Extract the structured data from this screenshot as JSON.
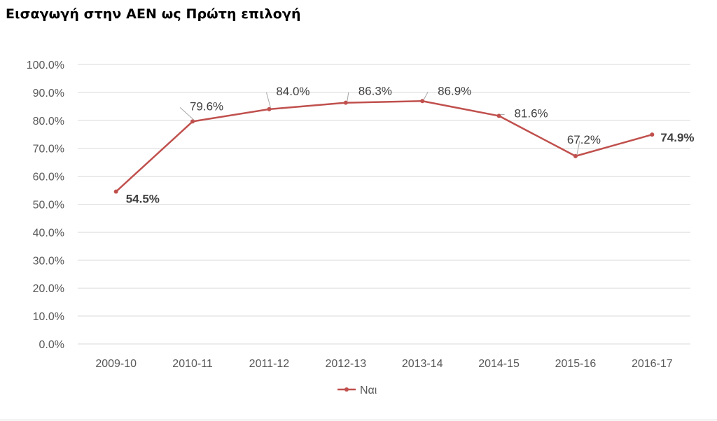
{
  "chart_data": {
    "type": "line",
    "title": "Εισαγωγή στην ΑΕΝ ως Πρώτη επιλογή",
    "categories": [
      "2009-10",
      "2010-11",
      "2011-12",
      "2012-13",
      "2013-14",
      "2014-15",
      "2015-16",
      "2016-17"
    ],
    "series": [
      {
        "name": "Ναι",
        "values": [
          54.5,
          79.6,
          84.0,
          86.3,
          86.9,
          81.6,
          67.2,
          74.9
        ],
        "labels": [
          "54.5%",
          "79.6%",
          "84.0%",
          "86.3%",
          "86.9%",
          "81.6%",
          "67.2%",
          "74.9%"
        ],
        "bold_labels": [
          true,
          false,
          false,
          false,
          false,
          false,
          false,
          true
        ],
        "color": "#c0504d"
      }
    ],
    "ylim": [
      0,
      100
    ],
    "yticks": [
      0,
      10,
      20,
      30,
      40,
      50,
      60,
      70,
      80,
      90,
      100
    ],
    "ytick_labels": [
      "0.0%",
      "10.0%",
      "20.0%",
      "30.0%",
      "40.0%",
      "50.0%",
      "60.0%",
      "70.0%",
      "80.0%",
      "90.0%",
      "100.0%"
    ],
    "grid": true,
    "legend": "bottom-center",
    "xlabel": "",
    "ylabel": ""
  },
  "colors": {
    "series": "#c0504d",
    "grid": "#d9d9d9",
    "axis_text": "#595959",
    "label_text": "#404040"
  }
}
